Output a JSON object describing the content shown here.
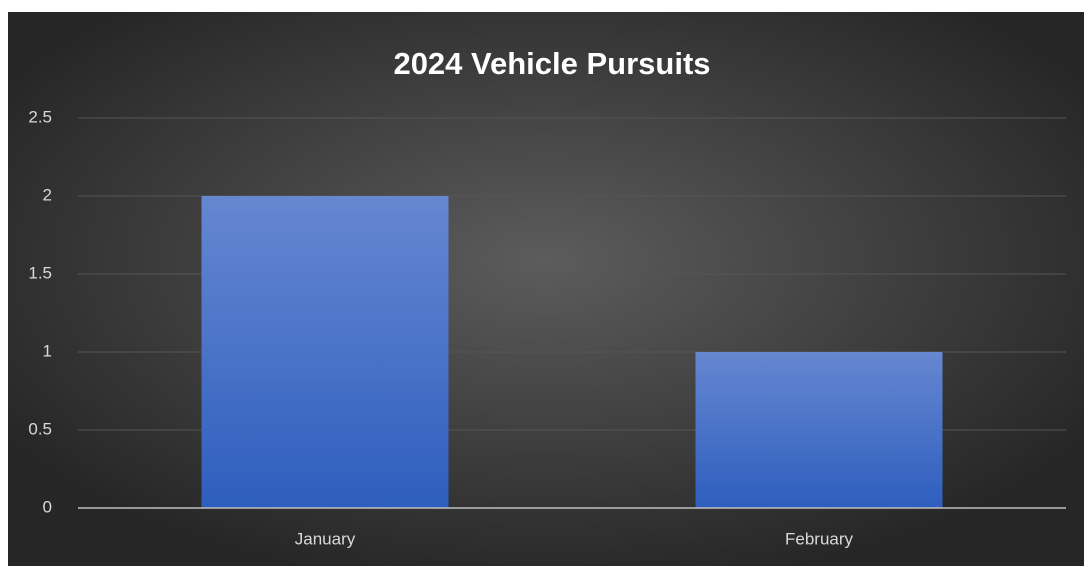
{
  "chart_data": {
    "type": "bar",
    "title": "2024 Vehicle Pursuits",
    "categories": [
      "January",
      "February"
    ],
    "values": [
      2,
      1
    ],
    "color": "#4472c4",
    "ylim": [
      0,
      2.5
    ],
    "yticks": [
      0,
      0.5,
      1,
      1.5,
      2,
      2.5
    ],
    "grid": true
  }
}
